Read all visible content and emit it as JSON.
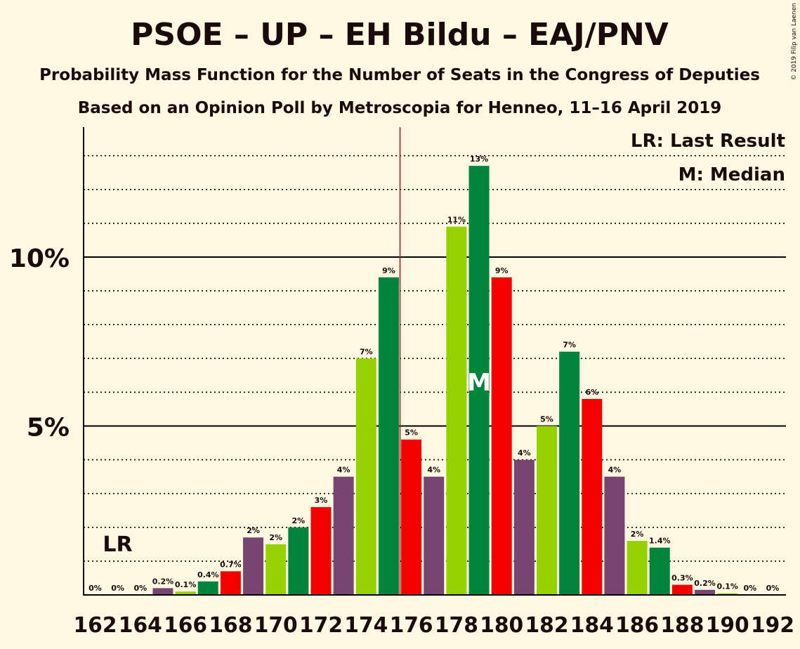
{
  "chart_data": {
    "type": "bar",
    "title": "PSOE – UP – EH Bildu – EAJ/PNV",
    "subtitle": "Probability Mass Function for the Number of Seats in the Congress of Deputies",
    "subtitle2": "Based on an Opinion Poll by Metroscopia for Henneo, 11–16 April 2019",
    "copyright": "© 2019 Filip van Laenen",
    "legend": {
      "lr": "LR: Last Result",
      "m": "M: Median",
      "placement": "top-right"
    },
    "lr_label": "LR",
    "median_label": "M",
    "last_result_seat": 162,
    "median_seat": 179,
    "majority_seat": 176,
    "ylim": [
      0,
      13.8
    ],
    "y_ticks": [
      {
        "value": 5,
        "label": "5%"
      },
      {
        "value": 10,
        "label": "10%"
      }
    ],
    "x_tick_labels": [
      "162",
      "164",
      "166",
      "168",
      "170",
      "172",
      "174",
      "176",
      "178",
      "180",
      "182",
      "184",
      "186",
      "188",
      "190",
      "192"
    ],
    "colors": {
      "background": "#FFF8E2",
      "purple": "#764671",
      "lightgreen": "#99D100",
      "green": "#00843D",
      "red": "#F30000",
      "majority_line": "#A0141B",
      "grid": "#000000"
    },
    "bars": [
      {
        "seat": 162,
        "value": 0,
        "label": "0%",
        "color": "purple"
      },
      {
        "seat": 163,
        "value": 0,
        "label": "0%",
        "color": "lightgreen"
      },
      {
        "seat": 164,
        "value": 0,
        "label": "0%",
        "color": "green"
      },
      {
        "seat": 165,
        "value": 0.2,
        "label": "0.2%",
        "color": "purple"
      },
      {
        "seat": 166,
        "value": 0.1,
        "label": "0.1%",
        "color": "lightgreen"
      },
      {
        "seat": 167,
        "value": 0.4,
        "label": "0.4%",
        "color": "green"
      },
      {
        "seat": 168,
        "value": 0.7,
        "label": "0.7%",
        "color": "red"
      },
      {
        "seat": 169,
        "value": 1.7,
        "label": "2%",
        "color": "purple"
      },
      {
        "seat": 170,
        "value": 1.5,
        "label": "2%",
        "color": "lightgreen"
      },
      {
        "seat": 171,
        "value": 2.0,
        "label": "2%",
        "color": "green"
      },
      {
        "seat": 172,
        "value": 2.6,
        "label": "3%",
        "color": "red"
      },
      {
        "seat": 173,
        "value": 3.5,
        "label": "4%",
        "color": "purple"
      },
      {
        "seat": 174,
        "value": 7.0,
        "label": "7%",
        "color": "lightgreen"
      },
      {
        "seat": 175,
        "value": 9.4,
        "label": "9%",
        "color": "green"
      },
      {
        "seat": 176,
        "value": 4.6,
        "label": "5%",
        "color": "red"
      },
      {
        "seat": 177,
        "value": 3.5,
        "label": "4%",
        "color": "purple"
      },
      {
        "seat": 178,
        "value": 10.9,
        "label": "11%",
        "color": "lightgreen"
      },
      {
        "seat": 179,
        "value": 12.7,
        "label": "13%",
        "color": "green"
      },
      {
        "seat": 180,
        "value": 9.4,
        "label": "9%",
        "color": "red"
      },
      {
        "seat": 181,
        "value": 4.0,
        "label": "4%",
        "color": "purple"
      },
      {
        "seat": 182,
        "value": 5.0,
        "label": "5%",
        "color": "lightgreen"
      },
      {
        "seat": 183,
        "value": 7.2,
        "label": "7%",
        "color": "green"
      },
      {
        "seat": 184,
        "value": 5.8,
        "label": "6%",
        "color": "red"
      },
      {
        "seat": 185,
        "value": 3.5,
        "label": "4%",
        "color": "purple"
      },
      {
        "seat": 186,
        "value": 1.6,
        "label": "2%",
        "color": "lightgreen"
      },
      {
        "seat": 187,
        "value": 1.4,
        "label": "1.4%",
        "color": "green"
      },
      {
        "seat": 188,
        "value": 0.3,
        "label": "0.3%",
        "color": "red"
      },
      {
        "seat": 189,
        "value": 0.15,
        "label": "0.2%",
        "color": "purple"
      },
      {
        "seat": 190,
        "value": 0.05,
        "label": "0.1%",
        "color": "lightgreen"
      },
      {
        "seat": 191,
        "value": 0,
        "label": "0%",
        "color": "green"
      },
      {
        "seat": 192,
        "value": 0,
        "label": "0%",
        "color": "red"
      }
    ]
  }
}
